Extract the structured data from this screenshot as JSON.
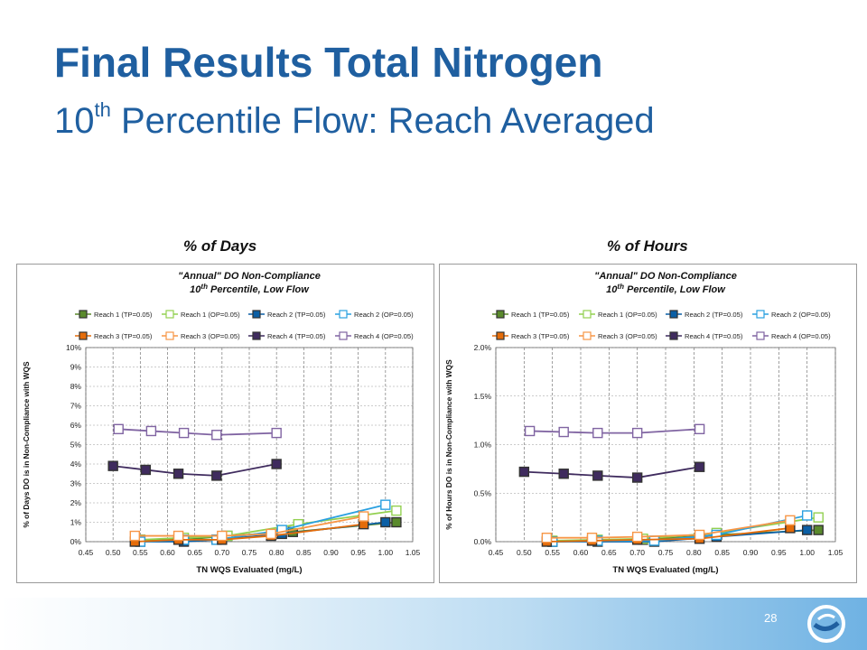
{
  "slide": {
    "title": "Final Results Total Nitrogen",
    "subtitle_prefix": "10",
    "subtitle_sup": "th",
    "subtitle_rest": " Percentile Flow: Reach Averaged",
    "left_label": "% of Days",
    "right_label": "% of Hours",
    "page_number": "28"
  },
  "legend": [
    {
      "name": "Reach 1 (TP=0.05)",
      "color": "#5a8a2c",
      "filled": true
    },
    {
      "name": "Reach 1 (OP=0.05)",
      "color": "#92d050",
      "filled": false
    },
    {
      "name": "Reach 2 (TP=0.05)",
      "color": "#0b5fa5",
      "filled": true
    },
    {
      "name": "Reach 2 (OP=0.05)",
      "color": "#2aa0e0",
      "filled": false
    },
    {
      "name": "Reach 3 (TP=0.05)",
      "color": "#e46c0a",
      "filled": true
    },
    {
      "name": "Reach 3 (OP=0.05)",
      "color": "#f79646",
      "filled": false
    },
    {
      "name": "Reach 4 (TP=0.05)",
      "color": "#3f2b5e",
      "filled": true
    },
    {
      "name": "Reach 4 (OP=0.05)",
      "color": "#8064a2",
      "filled": false
    }
  ],
  "chart_data": [
    {
      "type": "line",
      "title": "\"Annual\" DO Non-Compliance",
      "subtitle_prefix": "10",
      "subtitle_sup": "th",
      "subtitle_rest": " Percentile, Low Flow",
      "xlabel": "TN WQS Evaluated (mg/L)",
      "ylabel": "% of Days DO is in Non-Compliance with WQS",
      "xlim": [
        0.45,
        1.05
      ],
      "ylim": [
        0,
        10
      ],
      "xticks": [
        "0.45",
        "0.50",
        "0.55",
        "0.60",
        "0.65",
        "0.70",
        "0.75",
        "0.80",
        "0.85",
        "0.90",
        "0.95",
        "1.00",
        "1.05"
      ],
      "yticks": [
        "0%",
        "1%",
        "2%",
        "3%",
        "4%",
        "5%",
        "6%",
        "7%",
        "8%",
        "9%",
        "10%"
      ],
      "grid": true,
      "legend_position": "top",
      "series": [
        {
          "name": "Reach 1 (TP=0.05)",
          "x": [
            0.55,
            0.63,
            0.71,
            0.83,
            1.02
          ],
          "y": [
            0.1,
            0.1,
            0.3,
            0.5,
            1.0
          ]
        },
        {
          "name": "Reach 1 (OP=0.05)",
          "x": [
            0.55,
            0.63,
            0.71,
            0.84,
            1.02
          ],
          "y": [
            0.1,
            0.2,
            0.3,
            0.9,
            1.6
          ]
        },
        {
          "name": "Reach 2 (TP=0.05)",
          "x": [
            0.55,
            0.63,
            0.69,
            0.81,
            1.0
          ],
          "y": [
            0.0,
            0.0,
            0.1,
            0.4,
            1.0
          ]
        },
        {
          "name": "Reach 2 (OP=0.05)",
          "x": [
            0.55,
            0.63,
            0.69,
            0.81,
            1.0
          ],
          "y": [
            0.0,
            0.1,
            0.1,
            0.6,
            1.9
          ]
        },
        {
          "name": "Reach 3 (TP=0.05)",
          "x": [
            0.54,
            0.62,
            0.7,
            0.79,
            0.96
          ],
          "y": [
            0.0,
            0.1,
            0.1,
            0.3,
            0.9
          ]
        },
        {
          "name": "Reach 3 (OP=0.05)",
          "x": [
            0.54,
            0.62,
            0.7,
            0.79,
            0.96
          ],
          "y": [
            0.3,
            0.3,
            0.3,
            0.4,
            1.3
          ]
        },
        {
          "name": "Reach 4 (TP=0.05)",
          "x": [
            0.5,
            0.56,
            0.62,
            0.69,
            0.8
          ],
          "y": [
            3.9,
            3.7,
            3.5,
            3.4,
            4.0
          ]
        },
        {
          "name": "Reach 4 (OP=0.05)",
          "x": [
            0.51,
            0.57,
            0.63,
            0.69,
            0.8
          ],
          "y": [
            5.8,
            5.7,
            5.6,
            5.5,
            5.6
          ]
        }
      ]
    },
    {
      "type": "line",
      "title": "\"Annual\" DO Non-Compliance",
      "subtitle_prefix": "10",
      "subtitle_sup": "th",
      "subtitle_rest": " Percentile, Low Flow",
      "xlabel": "TN WQS Evaluated (mg/L)",
      "ylabel": "% of Hours DO is in Non-Compliance with WQS",
      "xlim": [
        0.45,
        1.05
      ],
      "ylim": [
        0,
        2
      ],
      "xticks": [
        "0.45",
        "0.50",
        "0.55",
        "0.60",
        "0.65",
        "0.70",
        "0.75",
        "0.80",
        "0.85",
        "0.90",
        "0.95",
        "1.00",
        "1.05"
      ],
      "yticks": [
        "0.0%",
        "0.5%",
        "1.0%",
        "1.5%",
        "2.0%"
      ],
      "grid": true,
      "legend_position": "top",
      "series": [
        {
          "name": "Reach 1 (TP=0.05)",
          "x": [
            0.55,
            0.63,
            0.71,
            0.84,
            1.02
          ],
          "y": [
            0.0,
            0.01,
            0.02,
            0.07,
            0.12
          ]
        },
        {
          "name": "Reach 1 (OP=0.05)",
          "x": [
            0.55,
            0.63,
            0.71,
            0.84,
            1.02
          ],
          "y": [
            0.01,
            0.02,
            0.03,
            0.09,
            0.25
          ]
        },
        {
          "name": "Reach 2 (TP=0.05)",
          "x": [
            0.55,
            0.63,
            0.73,
            0.84,
            1.0
          ],
          "y": [
            0.0,
            0.0,
            0.0,
            0.05,
            0.12
          ]
        },
        {
          "name": "Reach 2 (OP=0.05)",
          "x": [
            0.55,
            0.63,
            0.73,
            0.84,
            1.0
          ],
          "y": [
            0.0,
            0.01,
            0.01,
            0.07,
            0.27
          ]
        },
        {
          "name": "Reach 3 (TP=0.05)",
          "x": [
            0.54,
            0.62,
            0.7,
            0.81,
            0.97
          ],
          "y": [
            0.0,
            0.01,
            0.02,
            0.03,
            0.14
          ]
        },
        {
          "name": "Reach 3 (OP=0.05)",
          "x": [
            0.54,
            0.62,
            0.7,
            0.81,
            0.97
          ],
          "y": [
            0.04,
            0.04,
            0.05,
            0.07,
            0.22
          ]
        },
        {
          "name": "Reach 4 (TP=0.05)",
          "x": [
            0.5,
            0.57,
            0.63,
            0.7,
            0.81
          ],
          "y": [
            0.72,
            0.7,
            0.68,
            0.66,
            0.77
          ]
        },
        {
          "name": "Reach 4 (OP=0.05)",
          "x": [
            0.51,
            0.57,
            0.63,
            0.7,
            0.81
          ],
          "y": [
            1.14,
            1.13,
            1.12,
            1.12,
            1.16
          ]
        }
      ]
    }
  ]
}
